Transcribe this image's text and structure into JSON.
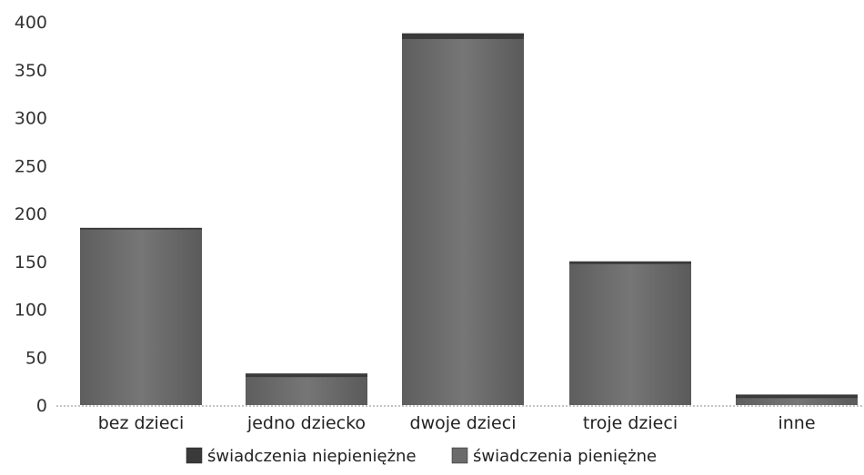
{
  "chart_data": {
    "type": "bar",
    "stacked": true,
    "categories": [
      "bez dzieci",
      "jedno dziecko",
      "dwoje dzieci",
      "troje dzieci",
      "inne"
    ],
    "series": [
      {
        "name": "świadczenia pieniężne",
        "values": [
          183,
          29,
          382,
          147,
          7
        ],
        "color": "#6b6b6b"
      },
      {
        "name": "świadczenia niepieniężne",
        "values": [
          2,
          4,
          6,
          3,
          4
        ],
        "color": "#3a3a3a"
      }
    ],
    "legend_order": [
      1,
      0
    ],
    "y_ticks": [
      0,
      50,
      100,
      150,
      200,
      250,
      300,
      350,
      400
    ],
    "ylim": [
      0,
      400
    ],
    "grid": false,
    "legend_position": "bottom-center",
    "title": "",
    "xlabel": "",
    "ylabel": ""
  }
}
